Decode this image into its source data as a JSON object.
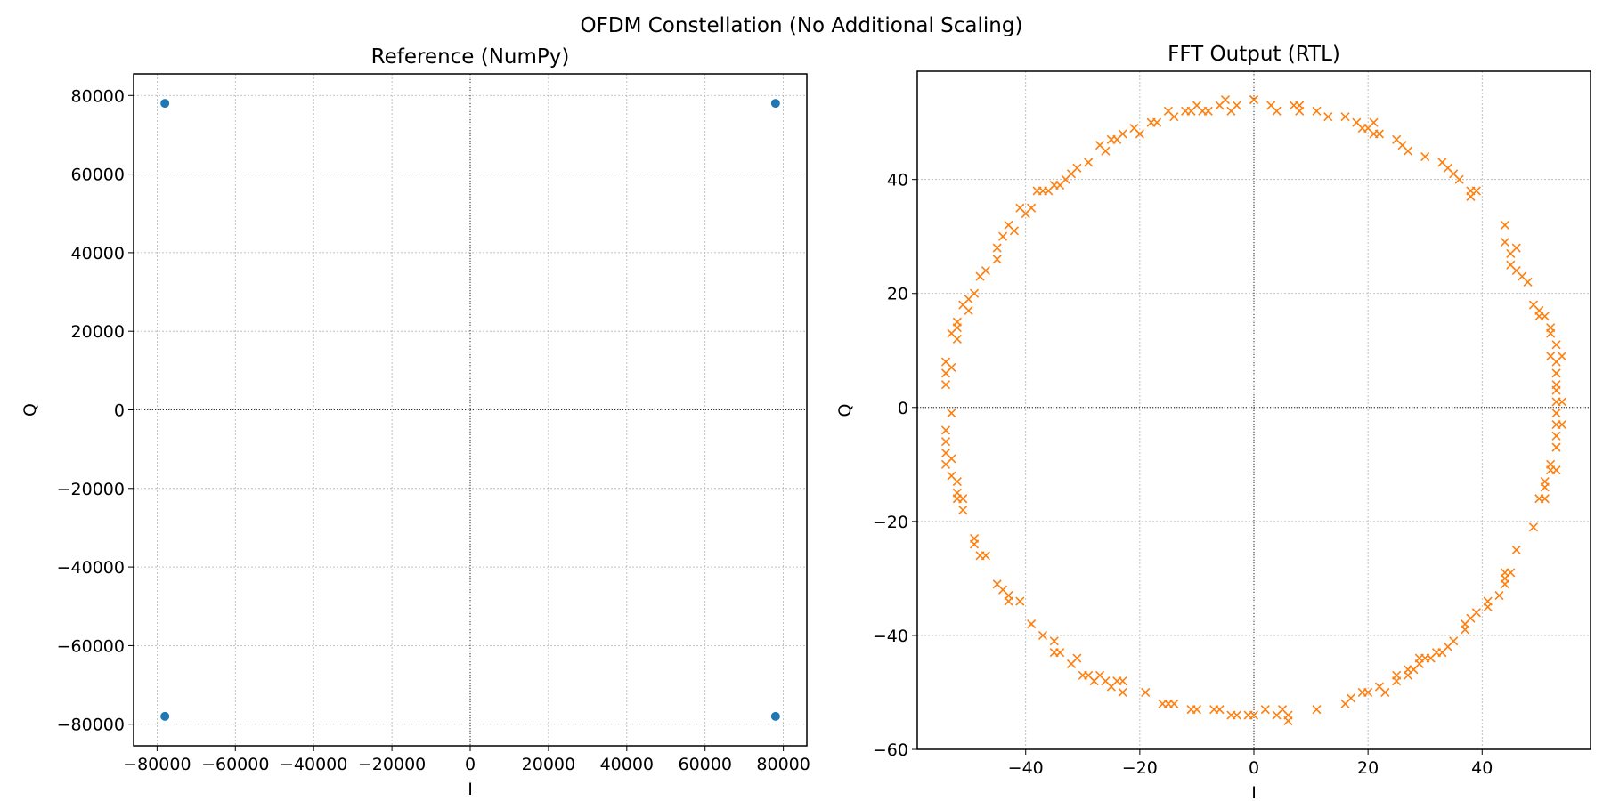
{
  "figure": {
    "suptitle": "OFDM Constellation (No Additional Scaling)"
  },
  "chart_data": [
    {
      "type": "scatter",
      "title": "Reference (NumPy)",
      "xlabel": "I",
      "ylabel": "Q",
      "xlim": [
        -86000,
        86000
      ],
      "ylim": [
        -85500,
        85500
      ],
      "xticks": [
        -80000,
        -60000,
        -40000,
        -20000,
        0,
        20000,
        40000,
        60000,
        80000
      ],
      "yticks": [
        -80000,
        -60000,
        -40000,
        -20000,
        0,
        20000,
        40000,
        60000,
        80000
      ],
      "xtick_labels": [
        "−80000",
        "−60000",
        "−40000",
        "−20000",
        "0",
        "20000",
        "40000",
        "60000",
        "80000"
      ],
      "ytick_labels": [
        "−80000",
        "−60000",
        "−40000",
        "−20000",
        "0",
        "20000",
        "40000",
        "60000",
        "80000"
      ],
      "grid": true,
      "zero_lines": true,
      "marker": "o",
      "color": "#1f77b4",
      "series": [
        {
          "points": [
            [
              -78000,
              78000
            ],
            [
              78000,
              78000
            ],
            [
              -78000,
              -78000
            ],
            [
              78000,
              -78000
            ]
          ]
        }
      ]
    },
    {
      "type": "scatter",
      "title": "FFT Output (RTL)",
      "xlabel": "I",
      "ylabel": "Q",
      "xlim": [
        -59,
        59
      ],
      "ylim": [
        -60,
        59
      ],
      "xticks": [
        -40,
        -20,
        0,
        20,
        40
      ],
      "yticks": [
        -60,
        -40,
        -20,
        0,
        20,
        40
      ],
      "xtick_labels": [
        "−40",
        "−20",
        "0",
        "20",
        "40"
      ],
      "ytick_labels": [
        "−60",
        "−40",
        "−20",
        "0",
        "20",
        "40"
      ],
      "grid": true,
      "zero_lines": true,
      "marker": "x",
      "color": "#ff7f0e",
      "series": [
        {
          "points": [
            [
              0,
              54
            ],
            [
              -3,
              53
            ],
            [
              -4,
              52
            ],
            [
              -5,
              54
            ],
            [
              -6,
              53
            ],
            [
              -8,
              52
            ],
            [
              -9,
              52
            ],
            [
              -10,
              53
            ],
            [
              -11,
              52
            ],
            [
              -12,
              52
            ],
            [
              -14,
              51
            ],
            [
              -15,
              52
            ],
            [
              -17,
              50
            ],
            [
              -18,
              50
            ],
            [
              -20,
              48
            ],
            [
              -21,
              49
            ],
            [
              -23,
              48
            ],
            [
              -24,
              47
            ],
            [
              -25,
              47
            ],
            [
              -26,
              45
            ],
            [
              -27,
              46
            ],
            [
              -29,
              43
            ],
            [
              -31,
              42
            ],
            [
              -32,
              41
            ],
            [
              -33,
              40
            ],
            [
              -34,
              39
            ],
            [
              -35,
              39
            ],
            [
              -36,
              38
            ],
            [
              -37,
              38
            ],
            [
              -38,
              38
            ],
            [
              -39,
              35
            ],
            [
              -40,
              34
            ],
            [
              -41,
              35
            ],
            [
              -42,
              31
            ],
            [
              -43,
              32
            ],
            [
              -44,
              30
            ],
            [
              -45,
              28
            ],
            [
              -45,
              26
            ],
            [
              -47,
              24
            ],
            [
              -48,
              23
            ],
            [
              -49,
              20
            ],
            [
              -50,
              19
            ],
            [
              -50,
              17
            ],
            [
              -51,
              18
            ],
            [
              -52,
              15
            ],
            [
              -52,
              14
            ],
            [
              -53,
              13
            ],
            [
              -52,
              12
            ],
            [
              -54,
              8
            ],
            [
              -54,
              6
            ],
            [
              -54,
              4
            ],
            [
              -53,
              7
            ],
            [
              -53,
              -1
            ],
            [
              -54,
              -4
            ],
            [
              -54,
              -6
            ],
            [
              -54,
              -8
            ],
            [
              -54,
              -10
            ],
            [
              -53,
              -9
            ],
            [
              -53,
              -12
            ],
            [
              -52,
              -13
            ],
            [
              -52,
              -15
            ],
            [
              -51,
              -16
            ],
            [
              -52,
              -16
            ],
            [
              -51,
              -18
            ],
            [
              -49,
              -23
            ],
            [
              -49,
              -24
            ],
            [
              -48,
              -26
            ],
            [
              -47,
              -26
            ],
            [
              -45,
              -31
            ],
            [
              -44,
              -32
            ],
            [
              -43,
              -33
            ],
            [
              -43,
              -34
            ],
            [
              -41,
              -34
            ],
            [
              -39,
              -38
            ],
            [
              -37,
              -40
            ],
            [
              -35,
              -41
            ],
            [
              -35,
              -43
            ],
            [
              -34,
              -43
            ],
            [
              -32,
              -45
            ],
            [
              -31,
              -44
            ],
            [
              -30,
              -47
            ],
            [
              -29,
              -47
            ],
            [
              -28,
              -48
            ],
            [
              -27,
              -47
            ],
            [
              -26,
              -48
            ],
            [
              -25,
              -49
            ],
            [
              -24,
              -48
            ],
            [
              -23,
              -48
            ],
            [
              -23,
              -50
            ],
            [
              -19,
              -50
            ],
            [
              -16,
              -52
            ],
            [
              -15,
              -52
            ],
            [
              -14,
              -52
            ],
            [
              -11,
              -53
            ],
            [
              -10,
              -53
            ],
            [
              -7,
              -53
            ],
            [
              -6,
              -53
            ],
            [
              -4,
              -54
            ],
            [
              -3,
              -54
            ],
            [
              -1,
              -54
            ],
            [
              0,
              -54
            ],
            [
              2,
              -53
            ],
            [
              4,
              -54
            ],
            [
              5,
              -53
            ],
            [
              6,
              -54
            ],
            [
              6,
              -55
            ],
            [
              11,
              -53
            ],
            [
              16,
              -52
            ],
            [
              17,
              -51
            ],
            [
              19,
              -50
            ],
            [
              20,
              -50
            ],
            [
              22,
              -49
            ],
            [
              23,
              -50
            ],
            [
              25,
              -48
            ],
            [
              25,
              -47
            ],
            [
              27,
              -47
            ],
            [
              27,
              -46
            ],
            [
              28,
              -46
            ],
            [
              29,
              -44
            ],
            [
              29,
              -45
            ],
            [
              30,
              -44
            ],
            [
              31,
              -44
            ],
            [
              32,
              -43
            ],
            [
              33,
              -43
            ],
            [
              34,
              -42
            ],
            [
              35,
              -41
            ],
            [
              37,
              -39
            ],
            [
              37,
              -38
            ],
            [
              38,
              -37
            ],
            [
              39,
              -36
            ],
            [
              41,
              -34
            ],
            [
              41,
              -35
            ],
            [
              43,
              -33
            ],
            [
              44,
              -31
            ],
            [
              44,
              -30
            ],
            [
              44,
              -29
            ],
            [
              45,
              -29
            ],
            [
              46,
              -25
            ],
            [
              49,
              -21
            ],
            [
              50,
              -16
            ],
            [
              51,
              -16
            ],
            [
              51,
              -14
            ],
            [
              51,
              -13
            ],
            [
              52,
              -10
            ],
            [
              52,
              -11
            ],
            [
              53,
              -11
            ],
            [
              53,
              -7
            ],
            [
              53,
              -5
            ],
            [
              53,
              -3
            ],
            [
              53,
              -1
            ],
            [
              54,
              -3
            ],
            [
              54,
              1
            ],
            [
              53,
              1
            ],
            [
              53,
              3
            ],
            [
              53,
              4
            ],
            [
              53,
              6
            ],
            [
              53,
              8
            ],
            [
              52,
              9
            ],
            [
              54,
              9
            ],
            [
              53,
              11
            ],
            [
              52,
              13
            ],
            [
              52,
              14
            ],
            [
              51,
              16
            ],
            [
              50,
              17
            ],
            [
              50,
              16
            ],
            [
              49,
              18
            ],
            [
              48,
              22
            ],
            [
              47,
              23
            ],
            [
              46,
              24
            ],
            [
              45,
              25
            ],
            [
              45,
              27
            ],
            [
              44,
              29
            ],
            [
              46,
              28
            ],
            [
              44,
              32
            ],
            [
              38,
              37
            ],
            [
              38,
              38
            ],
            [
              39,
              38
            ],
            [
              36,
              40
            ],
            [
              35,
              41
            ],
            [
              34,
              42
            ],
            [
              33,
              43
            ],
            [
              30,
              44
            ],
            [
              27,
              45
            ],
            [
              26,
              46
            ],
            [
              25,
              47
            ],
            [
              22,
              48
            ],
            [
              21,
              48
            ],
            [
              20,
              49
            ],
            [
              21,
              50
            ],
            [
              19,
              49
            ],
            [
              18,
              50
            ],
            [
              16,
              51
            ],
            [
              13,
              51
            ],
            [
              11,
              52
            ],
            [
              8,
              52
            ],
            [
              7,
              53
            ],
            [
              8,
              53
            ],
            [
              4,
              52
            ],
            [
              3,
              53
            ],
            [
              0,
              54
            ]
          ]
        }
      ]
    }
  ]
}
